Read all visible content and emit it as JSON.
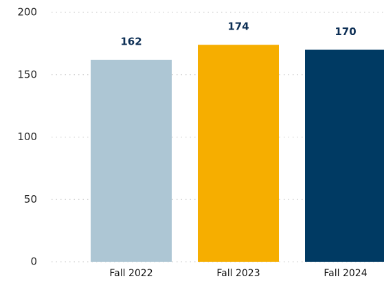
{
  "chart_data": {
    "type": "bar",
    "categories": [
      "Fall 2022",
      "Fall 2023",
      "Fall 2024"
    ],
    "values": [
      162,
      174,
      170
    ],
    "colors": [
      "#adc6d4",
      "#f6ae00",
      "#003a63"
    ],
    "ylim": [
      0,
      200
    ],
    "yticks": [
      0,
      50,
      100,
      150,
      200
    ],
    "grid": true
  }
}
